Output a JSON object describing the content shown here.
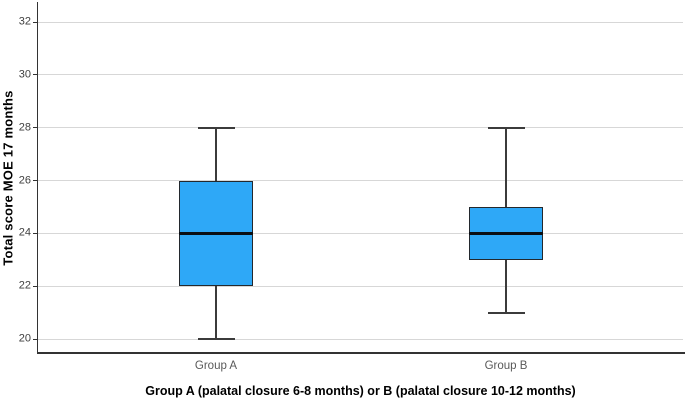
{
  "chart_data": {
    "type": "boxplot",
    "ylabel": "Total score MOE 17 months",
    "xlabel": "Group A (palatal closure 6-8 months) or B (palatal closure 10-12 months)",
    "categories": [
      "Group A",
      "Group B"
    ],
    "series": [
      {
        "name": "Group A",
        "min": 20,
        "q1": 22,
        "median": 24,
        "q3": 26,
        "max": 28
      },
      {
        "name": "Group B",
        "min": 21,
        "q1": 23,
        "median": 24,
        "q3": 25,
        "max": 28
      }
    ],
    "yticks": [
      20,
      22,
      24,
      26,
      28,
      30,
      32
    ],
    "ylim": [
      19.4,
      32.8
    ],
    "grid": true,
    "legend": false,
    "colors": {
      "box_fill": "#2ea8f7",
      "box_border": "#23282d",
      "median": "#0b0f14",
      "whisker": "#3b3b3b",
      "gridline": "#d7d7d7",
      "axis": "#333333",
      "tick_text": "#3f3f3f",
      "category_text": "#595959",
      "title_text": "#000000"
    }
  }
}
